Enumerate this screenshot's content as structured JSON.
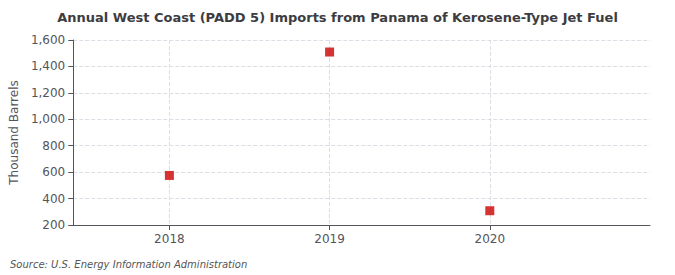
{
  "chart_data": {
    "type": "scatter",
    "title": "Annual West Coast (PADD 5) Imports from Panama of Kerosene-Type Jet Fuel",
    "ylabel": "Thousand Barrels",
    "source": "Source: U.S. Energy Information Administration",
    "x": [
      2018,
      2019,
      2020
    ],
    "values": [
      575,
      1509,
      308
    ],
    "color": "#cc0000",
    "marker": "square",
    "xlim": [
      2017.4,
      2021.0
    ],
    "xticks": [
      2018,
      2019,
      2020
    ],
    "ylim": [
      200,
      1600
    ],
    "yticks": [
      200,
      400,
      600,
      800,
      {
        "value": 1000,
        "label": "1,000"
      },
      {
        "value": 1200,
        "label": "1,200"
      },
      {
        "value": 1400,
        "label": "1,400"
      },
      {
        "value": 1600,
        "label": "1,600"
      }
    ],
    "grid": true
  }
}
